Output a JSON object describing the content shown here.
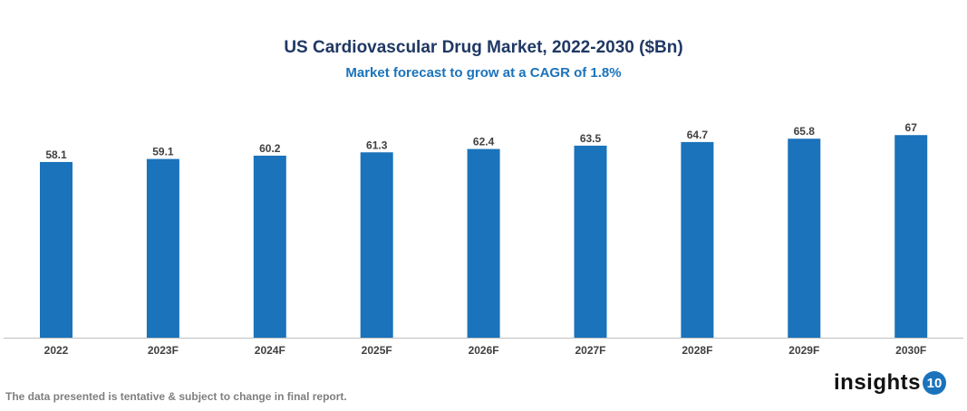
{
  "chart_data": {
    "type": "bar",
    "title": "US Cardiovascular Drug Market, 2022-2030 ($Bn)",
    "subtitle": "Market forecast to grow at a CAGR of 1.8%",
    "categories": [
      "2022",
      "2023F",
      "2024F",
      "2025F",
      "2026F",
      "2027F",
      "2028F",
      "2029F",
      "2030F"
    ],
    "values": [
      58.1,
      59.1,
      60.2,
      61.3,
      62.4,
      63.5,
      64.7,
      65.8,
      67
    ],
    "xlabel": "",
    "ylabel": "",
    "ylim": [
      0,
      67
    ],
    "grid": false,
    "data_labels": true,
    "colors": {
      "bar": "#1a73bb",
      "title": "#1f3864",
      "subtitle": "#1a73bb"
    }
  },
  "footer": {
    "note": "The data presented is tentative & subject to change in final report.",
    "logo_text": "insights",
    "logo_badge": "10"
  }
}
